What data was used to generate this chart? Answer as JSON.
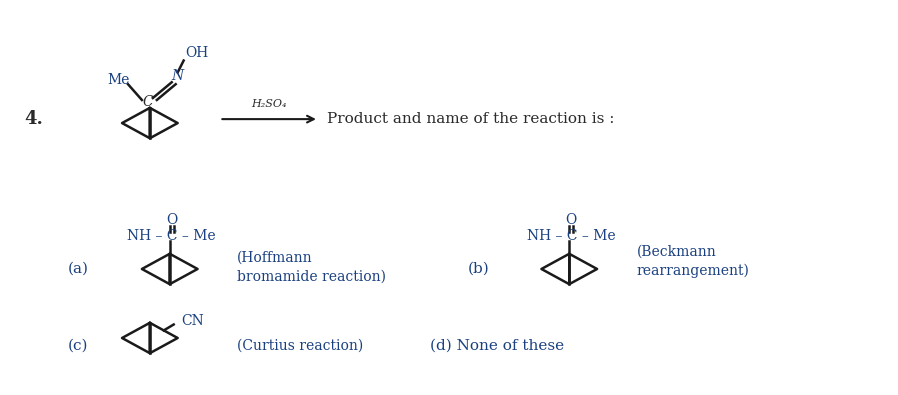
{
  "bg_color": "#ffffff",
  "fig_width": 8.98,
  "fig_height": 3.95,
  "dpi": 100,
  "question_number": "4.",
  "arrow_reagent": "H₂SO₄",
  "question_text": "Product and name of the reaction is :",
  "text_color": "#2a2a2a",
  "line_color": "#1a1a1a",
  "label_color": "#1a4080",
  "lw": 1.8
}
